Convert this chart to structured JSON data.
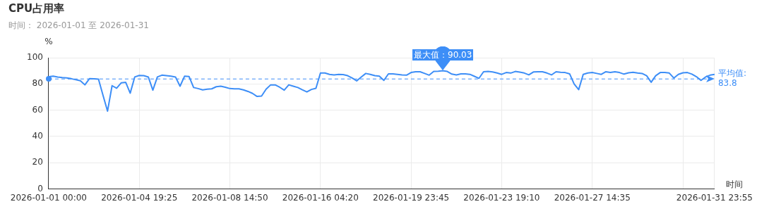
{
  "chart_data": {
    "type": "line",
    "title": "CPU占用率",
    "subtitle": "时间： 2026-01-01 至 2026-01-31",
    "xlabel": "时间",
    "ylabel": "%",
    "categories": [
      "2026-01-01 00:00",
      null,
      null,
      null,
      null,
      null,
      null,
      null,
      null,
      null,
      null,
      null,
      null,
      null,
      null,
      null,
      null,
      null,
      null,
      null,
      "2026-01-04 19:25",
      null,
      null,
      null,
      null,
      null,
      null,
      null,
      null,
      null,
      null,
      null,
      null,
      null,
      null,
      null,
      null,
      null,
      null,
      null,
      "2026-01-08 14:50",
      null,
      null,
      null,
      null,
      null,
      null,
      null,
      null,
      null,
      null,
      null,
      null,
      null,
      null,
      null,
      null,
      null,
      null,
      null,
      "2026-01-16 04:20",
      null,
      null,
      null,
      null,
      null,
      null,
      null,
      null,
      null,
      null,
      null,
      null,
      null,
      null,
      null,
      null,
      null,
      null,
      null,
      "2026-01-19 23:45",
      null,
      null,
      null,
      null,
      null,
      null,
      null,
      null,
      null,
      null,
      null,
      null,
      null,
      null,
      null,
      null,
      null,
      null,
      null,
      "2026-01-23 19:10",
      null,
      null,
      null,
      null,
      null,
      null,
      null,
      null,
      null,
      null,
      null,
      null,
      null,
      null,
      null,
      null,
      null,
      null,
      null,
      "2026-01-27 14:35",
      null,
      null,
      null,
      null,
      null,
      null,
      null,
      null,
      null,
      null,
      null,
      null,
      null,
      null,
      null,
      null,
      null,
      null,
      null,
      null,
      null,
      null,
      null,
      null,
      null,
      null,
      "2026-01-31 23:55"
    ],
    "series": [
      {
        "color": "#3d8ef7",
        "values": [
          85.5,
          85.9,
          85.3,
          84.8,
          84.6,
          84.0,
          83.2,
          82.5,
          79.3,
          84.0,
          83.9,
          83.6,
          71.3,
          59.3,
          78.7,
          76.7,
          80.8,
          81.3,
          73,
          85.3,
          86.5,
          86.3,
          85.3,
          75.3,
          85.3,
          86.7,
          86.3,
          85.9,
          85.3,
          78.3,
          85.9,
          85.6,
          77.3,
          76.5,
          75.5,
          76,
          76.3,
          77.9,
          78.3,
          77.5,
          76.5,
          76.3,
          76.3,
          75.5,
          74.3,
          72.8,
          70.5,
          70.8,
          76,
          79.3,
          79.3,
          77.5,
          75.3,
          79.3,
          78.3,
          77.3,
          75.5,
          73.9,
          75.8,
          76.7,
          88.3,
          88.3,
          87.3,
          86.9,
          87.3,
          87.1,
          86.3,
          84.5,
          82.3,
          85.3,
          88,
          87.3,
          86.3,
          85.9,
          82.7,
          87.7,
          87.7,
          87.3,
          86.9,
          86.7,
          88.7,
          89.3,
          89.3,
          88,
          86.7,
          89.5,
          89.7,
          90.03,
          89.5,
          87.5,
          86.9,
          87.7,
          87.7,
          87.3,
          85.8,
          84.3,
          89.3,
          89.5,
          89.1,
          88.3,
          87.3,
          88.7,
          88.3,
          89.5,
          89,
          88.3,
          86.9,
          89.1,
          89.3,
          89.3,
          88.3,
          86.9,
          89.3,
          88.9,
          88.7,
          87.7,
          80,
          75.7,
          87.3,
          88.3,
          88.7,
          88,
          87.3,
          89.3,
          88.7,
          89.3,
          88.7,
          87.5,
          88.5,
          88.9,
          88.3,
          88,
          86.3,
          81.3,
          86.3,
          88.7,
          88.7,
          88.3,
          84.5,
          87.3,
          88.5,
          88.7,
          87.5,
          85.5,
          82.7,
          85.3,
          86.7,
          87.3
        ]
      }
    ],
    "ylim": [
      0,
      100
    ],
    "yticks": [
      0,
      20,
      40,
      60,
      80,
      100
    ],
    "grid": true,
    "legend": false,
    "marker": "none",
    "ref_lines": [
      {
        "axis": "y",
        "value": 83.8,
        "label": "平均值:\n83.8",
        "color": "#3d8ef7",
        "line_style": "dashed"
      }
    ],
    "annotations": [
      {
        "text": "最大值：90.03",
        "y": 90.03
      }
    ]
  }
}
